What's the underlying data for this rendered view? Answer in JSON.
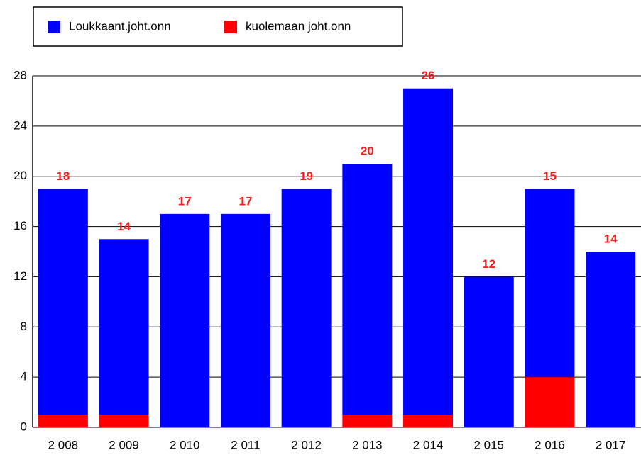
{
  "chart_data": {
    "type": "stacked_bar",
    "categories": [
      "2 008",
      "2 009",
      "2 010",
      "2 011",
      "2 012",
      "2 013",
      "2 014",
      "2 015",
      "2 016",
      "2 017"
    ],
    "series": [
      {
        "name": "kuolemaan joht.onn",
        "color": "#ff0000",
        "values": [
          1,
          1,
          0,
          0,
          0,
          1,
          1,
          0,
          4,
          0
        ]
      },
      {
        "name": "Loukkaant.joht.onn",
        "color": "#0000ff",
        "values": [
          18,
          14,
          17,
          17,
          19,
          20,
          26,
          12,
          15,
          14
        ]
      }
    ],
    "ylim": [
      0,
      28
    ],
    "yticks": [
      0,
      4,
      8,
      12,
      16,
      20,
      24,
      28
    ],
    "grid": true
  }
}
